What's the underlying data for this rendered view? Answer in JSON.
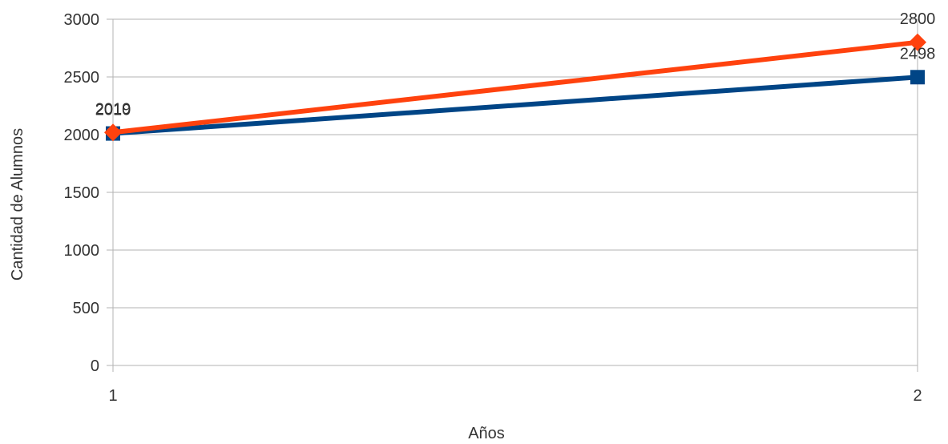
{
  "chart_data": {
    "type": "line",
    "x": [
      1,
      2
    ],
    "series": [
      {
        "values": [
          2010,
          2498
        ],
        "color": "#004586",
        "marker": "square"
      },
      {
        "values": [
          2019,
          2800
        ],
        "color": "#ff420e",
        "marker": "diamond"
      }
    ],
    "xlabel": "Años",
    "ylabel": "Cantidad de Alumnos",
    "xlim": [
      1,
      2
    ],
    "ylim": [
      0,
      3000
    ],
    "yticks": [
      0,
      500,
      1000,
      1500,
      2000,
      2500,
      3000
    ],
    "xticks": [
      1,
      2
    ],
    "grid": true
  }
}
